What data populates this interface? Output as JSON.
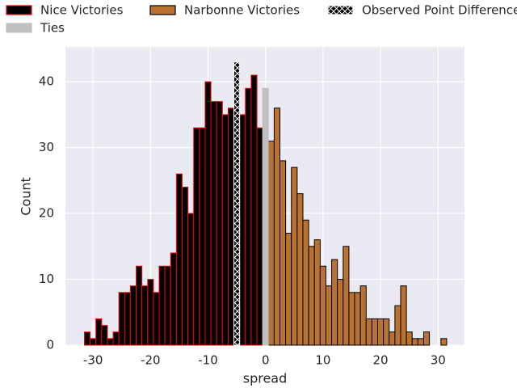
{
  "chart_data": {
    "type": "histogram",
    "x_label": "spread",
    "y_label": "Count",
    "xlim": [
      -34.8,
      34.6
    ],
    "ylim": [
      0,
      45.3
    ],
    "xticks": [
      -30,
      -20,
      -10,
      0,
      10,
      20,
      30
    ],
    "yticks": [
      0,
      10,
      20,
      30,
      40
    ],
    "grid": true,
    "background": "#eaeaf2",
    "series": [
      {
        "name": "Nice Victories",
        "color": "#000000",
        "edgecolor": "#ff0000",
        "bins": [
          -31.5,
          -30.5,
          -29.5,
          -28.5,
          -27.5,
          -26.5,
          -25.5,
          -24.5,
          -23.5,
          -22.5,
          -21.5,
          -20.5,
          -19.5,
          -18.5,
          -17.5,
          -16.5,
          -15.5,
          -14.5,
          -13.5,
          -12.5,
          -11.5,
          -10.5,
          -9.5,
          -8.5,
          -7.5,
          -6.5,
          -5.5,
          -4.5,
          -3.5,
          -2.5,
          -1.5,
          -0.5
        ],
        "values": [
          2,
          1,
          4,
          3,
          1,
          2,
          8,
          8,
          9,
          12,
          9,
          10,
          8,
          12,
          12,
          14,
          26,
          24,
          20,
          33,
          33,
          40,
          37,
          37,
          35,
          36,
          null,
          35,
          39,
          41,
          33
        ]
      },
      {
        "name": "Narbonne Victories",
        "color": "#b87333",
        "edgecolor": "#000000",
        "bins": [
          0.5,
          1.5,
          2.5,
          3.5,
          4.5,
          5.5,
          6.5,
          7.5,
          8.5,
          9.5,
          10.5,
          11.5,
          12.5,
          13.5,
          14.5,
          15.5,
          16.5,
          17.5,
          18.5,
          19.5,
          20.5,
          21.5,
          22.5,
          23.5,
          24.5,
          25.5,
          26.5,
          27.5,
          28.5,
          29.5,
          30.5,
          31.5
        ],
        "values": [
          31,
          36,
          28,
          17,
          27,
          23,
          19,
          15,
          16,
          12,
          9,
          13,
          10,
          15,
          8,
          8,
          9,
          4,
          4,
          4,
          4,
          2,
          6,
          9,
          2,
          1,
          1,
          2,
          0,
          0,
          1
        ]
      },
      {
        "name": "Observed Point Difference",
        "color": "#000000",
        "edgecolor": "#ffffff",
        "hatch": "x",
        "bins": [
          -5.5,
          -4.5
        ],
        "values": [
          43
        ]
      },
      {
        "name": "Ties",
        "color": "#c0c0c0",
        "edgecolor": "#c0c0c0",
        "bins": [
          -0.5,
          0.5
        ],
        "values": [
          39
        ]
      }
    ]
  }
}
